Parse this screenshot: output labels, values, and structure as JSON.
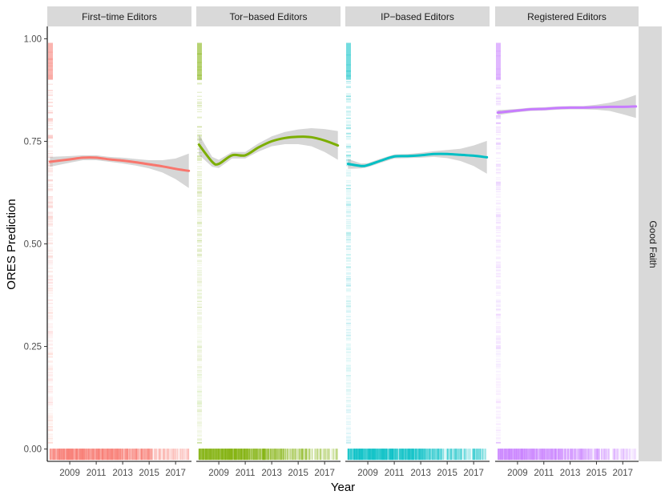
{
  "chart_data": {
    "type": "line",
    "title": "",
    "xlabel": "Year",
    "ylabel": "ORES Prediction",
    "row_strip": "Good Faith",
    "xlim": [
      2007.3,
      2018.2
    ],
    "ylim": [
      -0.03,
      1.03
    ],
    "x_ticks": [
      2009,
      2011,
      2013,
      2015,
      2017
    ],
    "x_tick_labels": [
      "2009",
      "2011",
      "2013",
      "2015",
      "2017"
    ],
    "y_ticks": [
      0,
      0.25,
      0.5,
      0.75,
      1
    ],
    "y_tick_labels": [
      "0.00",
      "0.25",
      "0.50",
      "0.75",
      "1.00"
    ],
    "panels": [
      {
        "name": "First-time Editors",
        "strip": "First−time Editors",
        "color": "#F8766D",
        "trend": {
          "x": [
            2007.5,
            2009,
            2010,
            2011,
            2012,
            2013,
            2014,
            2015,
            2016,
            2017,
            2018
          ],
          "y": [
            0.7,
            0.706,
            0.71,
            0.71,
            0.706,
            0.703,
            0.699,
            0.694,
            0.689,
            0.683,
            0.678
          ]
        },
        "band_halfwidth": [
          0.012,
          0.008,
          0.006,
          0.006,
          0.006,
          0.007,
          0.008,
          0.01,
          0.015,
          0.025,
          0.042
        ],
        "rug_density": [
          0.7,
          0.9,
          0.95,
          0.95,
          0.9,
          0.85,
          0.75,
          0.6,
          0.45,
          0.35,
          0.3
        ]
      },
      {
        "name": "Tor-based Editors",
        "strip": "Tor−based Editors",
        "color": "#7CAE00",
        "trend": {
          "x": [
            2007.5,
            2008.5,
            2009,
            2010,
            2011,
            2012,
            2013,
            2014,
            2015,
            2016,
            2017,
            2018
          ],
          "y": [
            0.742,
            0.7,
            0.695,
            0.716,
            0.716,
            0.735,
            0.75,
            0.758,
            0.761,
            0.76,
            0.752,
            0.74
          ]
        },
        "band_halfwidth": [
          0.025,
          0.012,
          0.01,
          0.008,
          0.008,
          0.01,
          0.012,
          0.015,
          0.018,
          0.022,
          0.028,
          0.035
        ],
        "rug_density": [
          0.95,
          0.95,
          0.95,
          0.95,
          0.9,
          0.85,
          0.7,
          0.55,
          0.5,
          0.45,
          0.4,
          0.35
        ]
      },
      {
        "name": "IP-based Editors",
        "strip": "IP−based Editors",
        "color": "#00BFC4",
        "trend": {
          "x": [
            2007.5,
            2008.5,
            2009,
            2010,
            2011,
            2012,
            2013,
            2014,
            2015,
            2016,
            2017,
            2018
          ],
          "y": [
            0.695,
            0.69,
            0.692,
            0.703,
            0.713,
            0.714,
            0.716,
            0.719,
            0.719,
            0.717,
            0.715,
            0.711
          ]
        },
        "band_halfwidth": [
          0.012,
          0.006,
          0.005,
          0.005,
          0.005,
          0.005,
          0.006,
          0.007,
          0.01,
          0.015,
          0.025,
          0.04
        ],
        "rug_density": [
          0.95,
          0.9,
          0.95,
          0.95,
          0.9,
          0.85,
          0.75,
          0.6,
          0.5,
          0.45,
          0.4,
          0.35
        ]
      },
      {
        "name": "Registered Editors",
        "strip": "Registered Editors",
        "color": "#C77CFF",
        "trend": {
          "x": [
            2007.5,
            2009,
            2010,
            2011,
            2012,
            2013,
            2014,
            2015,
            2016,
            2017,
            2018
          ],
          "y": [
            0.82,
            0.825,
            0.828,
            0.829,
            0.831,
            0.832,
            0.832,
            0.833,
            0.834,
            0.834,
            0.835
          ]
        },
        "band_halfwidth": [
          0.006,
          0.004,
          0.004,
          0.004,
          0.004,
          0.004,
          0.004,
          0.006,
          0.01,
          0.018,
          0.028
        ],
        "rug_density": [
          0.9,
          0.9,
          0.9,
          0.85,
          0.8,
          0.75,
          0.65,
          0.55,
          0.45,
          0.4,
          0.35
        ]
      }
    ]
  }
}
